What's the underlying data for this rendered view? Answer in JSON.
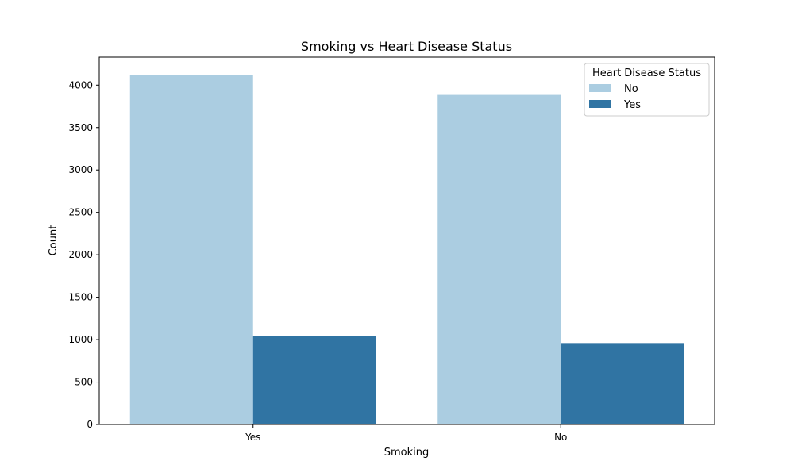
{
  "chart_data": {
    "type": "bar",
    "title": "Smoking vs Heart Disease Status",
    "xlabel": "Smoking",
    "ylabel": "Count",
    "categories": [
      "Yes",
      "No"
    ],
    "series": [
      {
        "name": "No",
        "values": [
          4115,
          3885
        ],
        "color": "#abcde1"
      },
      {
        "name": "Yes",
        "values": [
          1040,
          960
        ],
        "color": "#3074a3"
      }
    ],
    "ylim": [
      0,
      4330
    ],
    "yticks": [
      0,
      500,
      1000,
      1500,
      2000,
      2500,
      3000,
      3500,
      4000
    ],
    "grid": false,
    "legend": {
      "title": "Heart Disease Status",
      "placement": "top-right"
    }
  }
}
